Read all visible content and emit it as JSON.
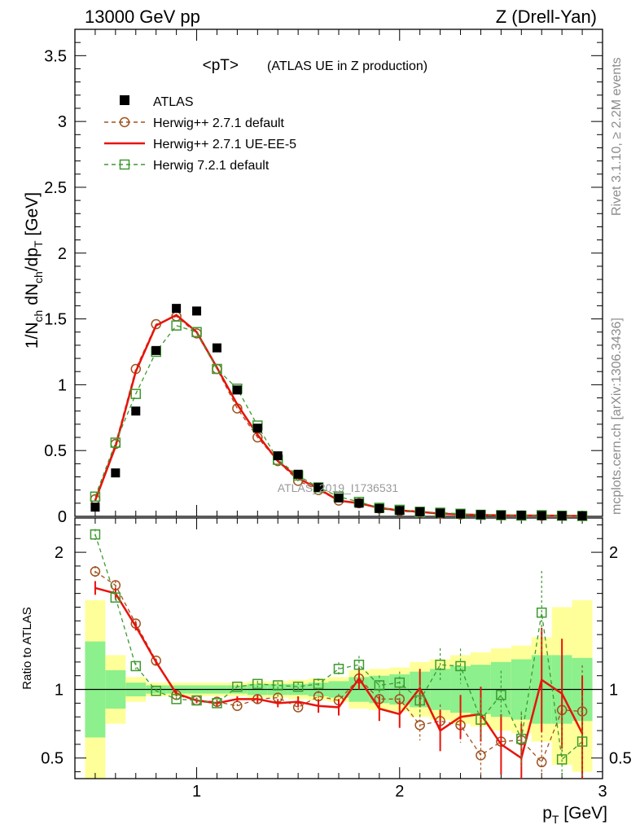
{
  "chart_data": {
    "type": "line",
    "header_left": "13000 GeV pp",
    "header_right": "Z (Drell-Yan)",
    "title": "<pT>",
    "title_suffix": "(ATLAS UE in Z production)",
    "ylabel_main": "1/N_ch dN_ch/dp_T [GeV]",
    "ylabel_ratio": "Ratio to ATLAS",
    "xlabel": "p_T [GeV]",
    "watermark": "ATLAS_2019_I1736531",
    "side_label_top": "Rivet 3.1.10, ≥ 2.2M events",
    "side_label_bottom": "mcplots.cern.ch [arXiv:1306.3436]",
    "xlim": [
      0.4,
      3.0
    ],
    "ylim_main": [
      0,
      3.7
    ],
    "ylim_ratio": [
      0.35,
      2.25
    ],
    "xticks": [
      1,
      2,
      3
    ],
    "xtick_labels": [
      "1",
      "2",
      "3"
    ],
    "yticks_main": [
      0,
      0.5,
      1,
      1.5,
      2,
      2.5,
      3,
      3.5
    ],
    "ytick_labels_main": [
      "0",
      "0.5",
      "1",
      "1.5",
      "2",
      "2.5",
      "3",
      "3.5"
    ],
    "yticks_ratio": [
      0.5,
      1,
      2
    ],
    "ytick_labels_ratio": [
      "0.5",
      "1",
      "2"
    ],
    "x": [
      0.5,
      0.6,
      0.7,
      0.8,
      0.9,
      1.0,
      1.1,
      1.2,
      1.3,
      1.4,
      1.5,
      1.6,
      1.7,
      1.8,
      1.9,
      2.0,
      2.1,
      2.2,
      2.3,
      2.4,
      2.5,
      2.6,
      2.7,
      2.8,
      2.9
    ],
    "atlas": [
      0.07,
      0.33,
      0.8,
      1.26,
      1.58,
      1.56,
      1.28,
      0.96,
      0.67,
      0.46,
      0.32,
      0.22,
      0.14,
      0.1,
      0.06,
      0.045,
      0.035,
      0.025,
      0.018,
      0.013,
      0.01,
      0.008,
      0.006,
      0.005,
      0.004
    ],
    "series": [
      {
        "name": "Herwig++ 2.7.1 default",
        "color": "#a0521e",
        "marker": "circle",
        "style": "dashed",
        "values": [
          0.13,
          0.55,
          1.12,
          1.46,
          1.52,
          1.39,
          1.12,
          0.82,
          0.6,
          0.42,
          0.27,
          0.2,
          0.12,
          0.1,
          0.06,
          0.04,
          0.03,
          0.02,
          0.014,
          0.01,
          0.007,
          0.006,
          0.005,
          0.004,
          0.003
        ],
        "ratio": [
          1.86,
          1.76,
          1.48,
          1.21,
          0.96,
          0.92,
          0.91,
          0.88,
          0.93,
          0.94,
          0.87,
          0.95,
          0.92,
          1.08,
          0.93,
          0.93,
          0.74,
          0.77,
          0.74,
          0.52,
          0.62,
          0.63,
          0.47,
          0.85,
          0.84
        ]
      },
      {
        "name": "Herwig++ 2.7.1 UE-EE-5",
        "color": "#e8130c",
        "marker": "none",
        "style": "solid",
        "values": [
          0.12,
          0.53,
          1.1,
          1.45,
          1.53,
          1.4,
          1.13,
          0.85,
          0.62,
          0.42,
          0.29,
          0.21,
          0.12,
          0.1,
          0.065,
          0.045,
          0.035,
          0.02,
          0.015,
          0.011,
          0.008,
          0.006,
          0.006,
          0.005,
          0.003
        ],
        "ratio": [
          1.74,
          1.7,
          1.46,
          1.2,
          0.97,
          0.92,
          0.9,
          0.93,
          0.93,
          0.9,
          0.91,
          0.88,
          0.87,
          1.08,
          0.86,
          0.82,
          1.01,
          0.7,
          0.8,
          0.82,
          0.6,
          0.5,
          1.07,
          0.97,
          0.68
        ]
      },
      {
        "name": "Herwig 7.2.1 default",
        "color": "#3c9a2e",
        "marker": "square",
        "style": "dashed",
        "values": [
          0.15,
          0.56,
          0.93,
          1.25,
          1.45,
          1.4,
          1.12,
          0.97,
          0.69,
          0.43,
          0.31,
          0.22,
          0.15,
          0.11,
          0.065,
          0.05,
          0.035,
          0.028,
          0.02,
          0.012,
          0.009,
          0.006,
          0.009,
          0.005,
          0.003
        ],
        "ratio": [
          2.13,
          1.67,
          1.17,
          0.99,
          0.93,
          0.92,
          0.9,
          1.02,
          1.04,
          1.03,
          1.02,
          1.04,
          1.15,
          1.18,
          1.03,
          1.05,
          0.92,
          1.18,
          1.17,
          0.78,
          0.96,
          0.64,
          1.56,
          0.49,
          0.62
        ]
      }
    ],
    "legend": [
      "ATLAS",
      "Herwig++ 2.7.1 default",
      "Herwig++ 2.7.1 UE-EE-5",
      "Herwig 7.2.1 default"
    ],
    "legend_position": "top-left",
    "band_inner": [
      0.65,
      0.86,
      0.95,
      0.97,
      0.97,
      0.97,
      0.97,
      0.97,
      0.96,
      0.96,
      0.96,
      0.95,
      0.94,
      0.91,
      0.9,
      0.89,
      0.87,
      0.85,
      0.83,
      0.82,
      0.8,
      0.78,
      0.75,
      0.75,
      0.77
    ],
    "band_inner_hi": [
      1.35,
      1.14,
      1.05,
      1.03,
      1.03,
      1.03,
      1.03,
      1.03,
      1.04,
      1.04,
      1.04,
      1.05,
      1.06,
      1.09,
      1.1,
      1.11,
      1.13,
      1.15,
      1.17,
      1.18,
      1.2,
      1.22,
      1.25,
      1.25,
      1.23
    ],
    "band_outer": [
      0.35,
      0.75,
      0.91,
      0.95,
      0.95,
      0.95,
      0.95,
      0.95,
      0.94,
      0.94,
      0.93,
      0.92,
      0.91,
      0.86,
      0.85,
      0.84,
      0.8,
      0.78,
      0.75,
      0.73,
      0.7,
      0.68,
      0.62,
      0.45,
      0.4
    ],
    "band_outer_hi": [
      1.65,
      1.25,
      1.09,
      1.05,
      1.05,
      1.05,
      1.05,
      1.05,
      1.06,
      1.06,
      1.07,
      1.08,
      1.09,
      1.14,
      1.15,
      1.16,
      1.2,
      1.22,
      1.25,
      1.27,
      1.3,
      1.32,
      1.38,
      1.6,
      1.65
    ]
  }
}
